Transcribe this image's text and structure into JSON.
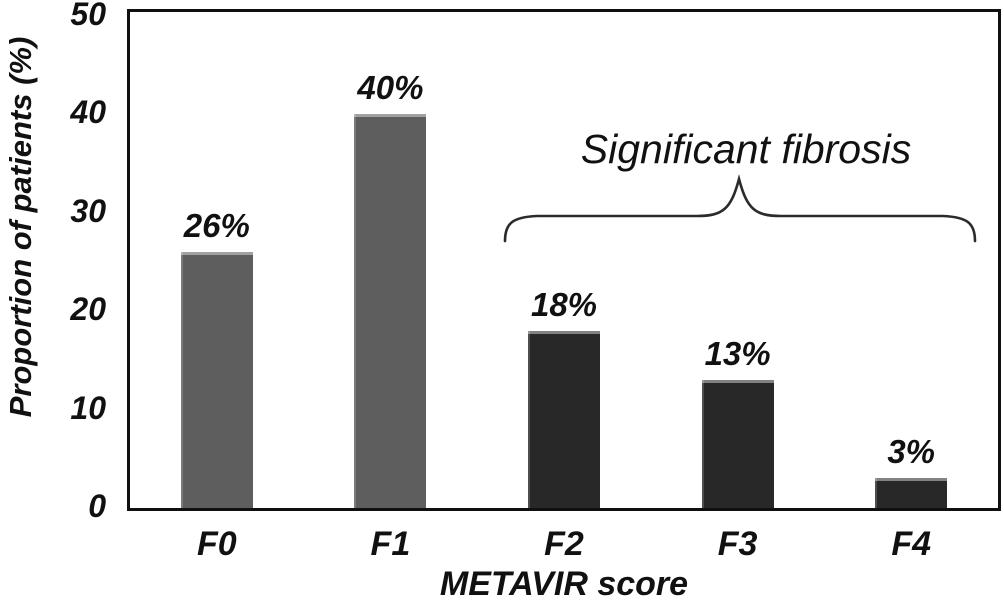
{
  "chart_data": {
    "type": "bar",
    "title": "",
    "categories": [
      "F0",
      "F1",
      "F2",
      "F3",
      "F4"
    ],
    "values": [
      26,
      40,
      18,
      13,
      3
    ],
    "value_labels": [
      "26%",
      "40%",
      "18%",
      "13%",
      "3%"
    ],
    "bar_colors": [
      "#5e5e5e",
      "#5e5e5e",
      "#282828",
      "#282828",
      "#282828"
    ],
    "xlabel": "METAVIR score",
    "ylabel": "Proportion of patients (%)",
    "ylim": [
      0,
      50
    ],
    "yticks": [
      0,
      10,
      20,
      30,
      40,
      50
    ],
    "grid": false,
    "legend": "none",
    "annotation": {
      "text": "Significant fibrosis",
      "applies_to": [
        "F2",
        "F3",
        "F4"
      ]
    }
  },
  "colors": {
    "background": "#ffffff",
    "axis": "#101010",
    "text": "#111111",
    "brace": "#2b2b2b",
    "bar_gray": "#5e5e5e",
    "bar_dark": "#282828"
  }
}
